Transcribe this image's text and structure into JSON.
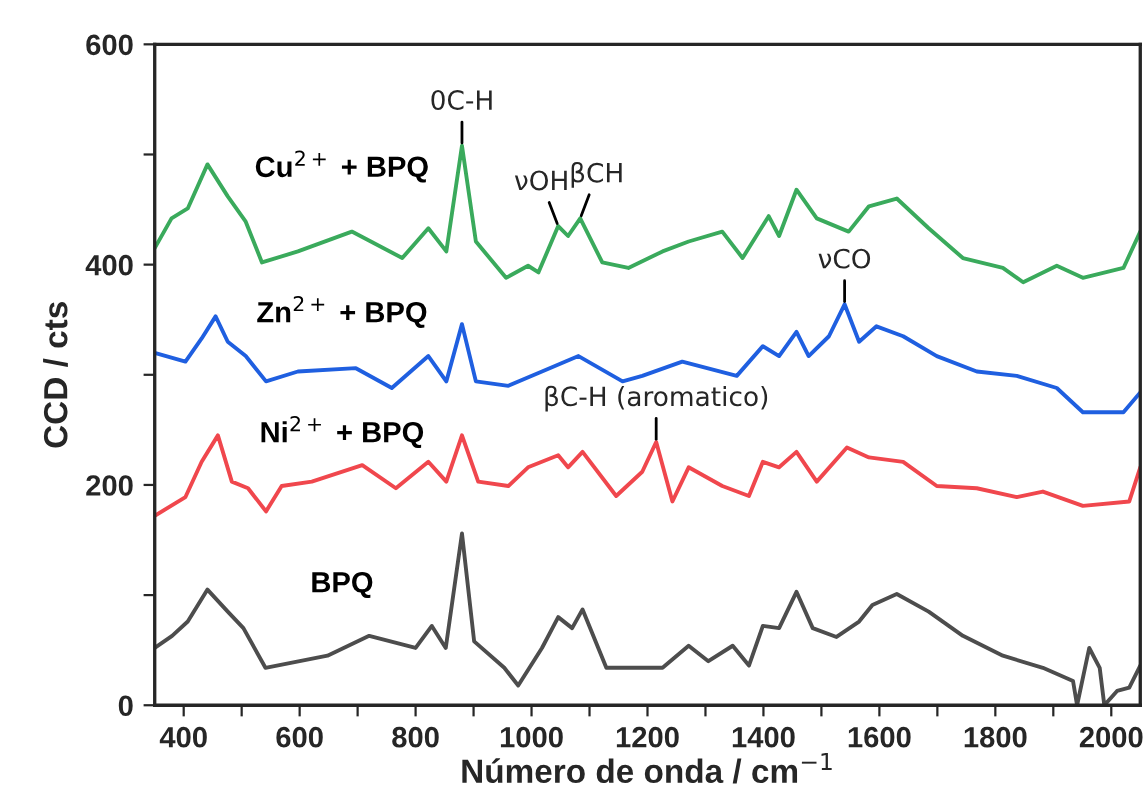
{
  "chart_data": {
    "type": "line",
    "xlabel": "Número de onda / cm$^{−1}$",
    "ylabel": "CCD / cts",
    "xlim": [
      350,
      2050
    ],
    "ylim": [
      0,
      600
    ],
    "xticks": [
      400,
      {
        "value": 500,
        "label": null
      },
      600,
      {
        "value": 700,
        "label": null
      },
      800,
      {
        "value": 900,
        "label": null
      },
      1000,
      {
        "value": 1100,
        "label": null
      },
      1200,
      {
        "value": 1300,
        "label": null
      },
      1400,
      {
        "value": 1500,
        "label": null
      },
      1600,
      {
        "value": 1700,
        "label": null
      },
      1800,
      {
        "value": 1900,
        "label": null
      },
      2000
    ],
    "yticks": [
      0,
      {
        "value": 100,
        "label": null
      },
      200,
      {
        "value": 300,
        "label": null
      },
      400,
      {
        "value": 500,
        "label": null
      },
      600
    ],
    "legend": false,
    "grid": false,
    "series": [
      {
        "name": "BPQ",
        "color": "#4d4d4d",
        "x": [
          350,
          380,
          407,
          441,
          476,
          503,
          541,
          600,
          648,
          720,
          800,
          828,
          852,
          880,
          901,
          953,
          977,
          1018,
          1046,
          1070,
          1088,
          1129,
          1157,
          1226,
          1271,
          1305,
          1347,
          1375,
          1399,
          1427,
          1457,
          1485,
          1526,
          1565,
          1588,
          1630,
          1685,
          1744,
          1813,
          1882,
          1934,
          1941,
          1962,
          1980,
          1988,
          2010,
          2031,
          2050
        ],
        "values": [
          52,
          63,
          76,
          105,
          85,
          70,
          34,
          40,
          45,
          63,
          52,
          72,
          52,
          156,
          58,
          34,
          18,
          52,
          80,
          70,
          87,
          34,
          34,
          34,
          54,
          40,
          54,
          36,
          72,
          70,
          103,
          70,
          62,
          76,
          91,
          101,
          85,
          63,
          45,
          34,
          22,
          0,
          52,
          34,
          0,
          13,
          16,
          36
        ]
      },
      {
        "name": "Ni$^{2+}$ + BPQ",
        "color": "#f0474d",
        "x": [
          350,
          403,
          431,
          459,
          483,
          511,
          542,
          569,
          621,
          708,
          766,
          822,
          853,
          880,
          908,
          960,
          994,
          1046,
          1063,
          1088,
          1146,
          1191,
          1215,
          1243,
          1271,
          1329,
          1375,
          1399,
          1427,
          1457,
          1492,
          1544,
          1582,
          1641,
          1699,
          1768,
          1837,
          1882,
          1951,
          2031,
          2050
        ],
        "values": [
          172,
          189,
          221,
          245,
          203,
          197,
          176,
          199,
          203,
          218,
          197,
          221,
          203,
          245,
          203,
          199,
          216,
          227,
          216,
          230,
          190,
          212,
          239,
          185,
          216,
          199,
          190,
          221,
          216,
          230,
          203,
          234,
          225,
          221,
          199,
          197,
          189,
          194,
          181,
          185,
          216
        ]
      },
      {
        "name": "Zn$^{2+}$ + BPQ",
        "color": "#1f5fe0",
        "x": [
          350,
          403,
          431,
          455,
          476,
          507,
          542,
          597,
          697,
          759,
          822,
          853,
          880,
          904,
          960,
          1018,
          1081,
          1157,
          1191,
          1260,
          1354,
          1399,
          1427,
          1457,
          1478,
          1513,
          1540,
          1565,
          1595,
          1641,
          1699,
          1768,
          1837,
          1906,
          1951,
          2021,
          2050
        ],
        "values": [
          320,
          312,
          333,
          353,
          330,
          317,
          294,
          303,
          306,
          288,
          317,
          294,
          346,
          294,
          290,
          303,
          317,
          294,
          299,
          312,
          299,
          326,
          317,
          339,
          317,
          335,
          364,
          330,
          344,
          335,
          317,
          303,
          299,
          288,
          266,
          266,
          284
        ]
      },
      {
        "name": "Cu$^{2+}$ + BPQ",
        "color": "#3aaa5c",
        "x": [
          350,
          379,
          407,
          441,
          476,
          507,
          535,
          597,
          690,
          777,
          822,
          853,
          880,
          904,
          956,
          994,
          1012,
          1046,
          1063,
          1084,
          1122,
          1167,
          1226,
          1271,
          1329,
          1364,
          1409,
          1427,
          1457,
          1492,
          1547,
          1582,
          1630,
          1685,
          1744,
          1813,
          1848,
          1906,
          1951,
          2021,
          2050
        ],
        "values": [
          415,
          442,
          451,
          491,
          462,
          439,
          402,
          412,
          430,
          406,
          433,
          412,
          508,
          421,
          388,
          399,
          393,
          435,
          426,
          442,
          402,
          397,
          412,
          421,
          430,
          406,
          444,
          426,
          468,
          442,
          430,
          453,
          460,
          433,
          406,
          397,
          384,
          399,
          388,
          397,
          430
        ]
      }
    ],
    "annotations": [
      {
        "text": "0C-H",
        "x": 880,
        "y": 508
      },
      {
        "text": "νOH",
        "x": 1046,
        "y": 435
      },
      {
        "text": "βCH",
        "x": 1084,
        "y": 442
      },
      {
        "text": "νCO",
        "x": 1540,
        "y": 364
      },
      {
        "text": "βC-H (aromatico)",
        "x": 1215,
        "y": 239
      }
    ]
  }
}
